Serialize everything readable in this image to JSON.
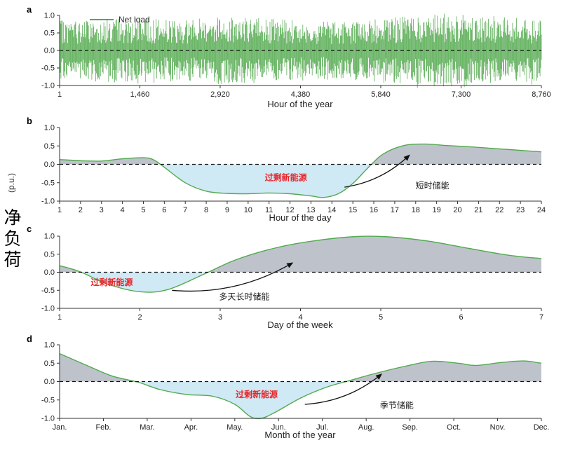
{
  "page": {
    "ylabel_pu": "(p.u.)",
    "ylabel_cn": "净负荷"
  },
  "colors": {
    "line": "#52a94e",
    "above_fill": "#bec3cb",
    "below_fill": "#cfe9f5",
    "zero_line": "#111111",
    "surplus_text": "#e8262a",
    "annotation_text": "#1a1a1a"
  },
  "chart_data": [
    {
      "id": "a",
      "type": "line",
      "panel_label": "a",
      "legend": "Net load",
      "xlabel": "Hour of the year",
      "x_range": [
        1,
        8760
      ],
      "y_range": [
        -1,
        1
      ],
      "yticks": [
        "1.0",
        "0.5",
        "0.0",
        "-0.5",
        "-1.0"
      ],
      "xticks": [
        {
          "label": "1",
          "value": 1
        },
        {
          "label": "1,460",
          "value": 1460
        },
        {
          "label": "2,920",
          "value": 2920
        },
        {
          "label": "4,380",
          "value": 4380
        },
        {
          "label": "5,840",
          "value": 5840
        },
        {
          "label": "7,300",
          "value": 7300
        },
        {
          "label": "8,760",
          "value": 8760
        }
      ],
      "series_description": "Hourly net load fluctuating rapidly around zero between roughly -1.0 and 1.0 p.u. across all 8,760 hours, with slightly larger amplitude around hours 5,840-7,300",
      "amplitude_envelope": [
        0.85,
        0.9,
        0.95,
        0.88,
        1.0,
        0.92,
        0.86,
        0.82,
        0.92,
        1.0,
        1.08,
        0.96,
        0.86
      ],
      "zero_line": true
    },
    {
      "id": "b",
      "type": "area",
      "panel_label": "b",
      "xlabel": "Hour of the day",
      "x_range": [
        1,
        24
      ],
      "y_range": [
        -1,
        1
      ],
      "yticks": [
        "1.0",
        "0.5",
        "0.0",
        "-0.5",
        "-1.0"
      ],
      "xticks": [
        {
          "label": "1",
          "value": 1
        },
        {
          "label": "2",
          "value": 2
        },
        {
          "label": "3",
          "value": 3
        },
        {
          "label": "4",
          "value": 4
        },
        {
          "label": "5",
          "value": 5
        },
        {
          "label": "6",
          "value": 6
        },
        {
          "label": "7",
          "value": 7
        },
        {
          "label": "8",
          "value": 8
        },
        {
          "label": "9",
          "value": 9
        },
        {
          "label": "10",
          "value": 10
        },
        {
          "label": "11",
          "value": 11
        },
        {
          "label": "12",
          "value": 12
        },
        {
          "label": "13",
          "value": 13
        },
        {
          "label": "14",
          "value": 14
        },
        {
          "label": "15",
          "value": 15
        },
        {
          "label": "16",
          "value": 16
        },
        {
          "label": "17",
          "value": 17
        },
        {
          "label": "18",
          "value": 18
        },
        {
          "label": "19",
          "value": 19
        },
        {
          "label": "20",
          "value": 20
        },
        {
          "label": "21",
          "value": 21
        },
        {
          "label": "22",
          "value": 22
        },
        {
          "label": "23",
          "value": 23
        },
        {
          "label": "24",
          "value": 24
        }
      ],
      "points": [
        [
          1,
          0.13
        ],
        [
          2,
          0.1
        ],
        [
          3,
          0.09
        ],
        [
          4,
          0.15
        ],
        [
          5,
          0.18
        ],
        [
          5.5,
          0.12
        ],
        [
          6,
          -0.08
        ],
        [
          7,
          -0.5
        ],
        [
          8,
          -0.73
        ],
        [
          9,
          -0.79
        ],
        [
          10,
          -0.8
        ],
        [
          11,
          -0.78
        ],
        [
          12,
          -0.8
        ],
        [
          13,
          -0.86
        ],
        [
          13.6,
          -0.9
        ],
        [
          14.3,
          -0.8
        ],
        [
          15,
          -0.52
        ],
        [
          15.8,
          -0.05
        ],
        [
          16.5,
          0.3
        ],
        [
          17.5,
          0.52
        ],
        [
          18.5,
          0.55
        ],
        [
          19.5,
          0.51
        ],
        [
          20.5,
          0.48
        ],
        [
          21.5,
          0.44
        ],
        [
          22.5,
          0.4
        ],
        [
          24,
          0.34
        ]
      ],
      "zero_line": true,
      "annotations": {
        "surplus": {
          "text": "过剩新能源",
          "x": 11.8,
          "y": -0.44,
          "color": "#e8262a"
        },
        "storage": {
          "text": "短时储能",
          "x": 18.8,
          "y": -0.66,
          "color": "#1a1a1a"
        },
        "arrow": {
          "from": [
            14.6,
            -0.62
          ],
          "to": [
            17.7,
            0.25
          ]
        }
      }
    },
    {
      "id": "c",
      "type": "area",
      "panel_label": "c",
      "xlabel": "Day of the week",
      "x_range": [
        1,
        7
      ],
      "y_range": [
        -1,
        1
      ],
      "yticks": [
        "1.0",
        "0.5",
        "0.0",
        "-0.5",
        "-1.0"
      ],
      "xticks": [
        {
          "label": "1",
          "value": 1
        },
        {
          "label": "2",
          "value": 2
        },
        {
          "label": "3",
          "value": 3
        },
        {
          "label": "4",
          "value": 4
        },
        {
          "label": "5",
          "value": 5
        },
        {
          "label": "6",
          "value": 6
        },
        {
          "label": "7",
          "value": 7
        }
      ],
      "points": [
        [
          1,
          0.18
        ],
        [
          1.25,
          0.02
        ],
        [
          1.6,
          -0.33
        ],
        [
          2,
          -0.54
        ],
        [
          2.35,
          -0.48
        ],
        [
          2.8,
          -0.05
        ],
        [
          3.2,
          0.35
        ],
        [
          3.7,
          0.68
        ],
        [
          4.2,
          0.88
        ],
        [
          4.7,
          0.99
        ],
        [
          5.1,
          0.98
        ],
        [
          5.6,
          0.86
        ],
        [
          6.1,
          0.66
        ],
        [
          6.6,
          0.47
        ],
        [
          7,
          0.38
        ]
      ],
      "zero_line": true,
      "annotations": {
        "surplus": {
          "text": "过剩新能源",
          "x": 1.65,
          "y": -0.36,
          "color": "#e8262a"
        },
        "storage": {
          "text": "多天长时储能",
          "x": 3.3,
          "y": -0.76,
          "color": "#1a1a1a"
        },
        "arrow": {
          "from": [
            2.4,
            -0.5
          ],
          "to": [
            3.9,
            0.26
          ]
        }
      }
    },
    {
      "id": "d",
      "type": "area",
      "panel_label": "d",
      "xlabel": "Month of the year",
      "x_range": [
        0,
        11
      ],
      "y_range": [
        -1,
        1
      ],
      "yticks": [
        "1.0",
        "0.5",
        "0.0",
        "-0.5",
        "-1.0"
      ],
      "xticks": [
        {
          "label": "Jan.",
          "value": 0
        },
        {
          "label": "Feb.",
          "value": 1
        },
        {
          "label": "Mar.",
          "value": 2
        },
        {
          "label": "Apr.",
          "value": 3
        },
        {
          "label": "May.",
          "value": 4
        },
        {
          "label": "Jun.",
          "value": 5
        },
        {
          "label": "Jul.",
          "value": 6
        },
        {
          "label": "Aug.",
          "value": 7
        },
        {
          "label": "Sep.",
          "value": 8
        },
        {
          "label": "Oct.",
          "value": 9
        },
        {
          "label": "Nov.",
          "value": 10
        },
        {
          "label": "Dec.",
          "value": 11
        }
      ],
      "points": [
        [
          0,
          0.76
        ],
        [
          0.6,
          0.45
        ],
        [
          1.2,
          0.15
        ],
        [
          1.8,
          -0.02
        ],
        [
          2.3,
          -0.22
        ],
        [
          2.9,
          -0.35
        ],
        [
          3.5,
          -0.4
        ],
        [
          4,
          -0.62
        ],
        [
          4.35,
          -0.95
        ],
        [
          4.6,
          -1.0
        ],
        [
          4.9,
          -0.85
        ],
        [
          5.5,
          -0.45
        ],
        [
          6.1,
          -0.15
        ],
        [
          6.6,
          0.02
        ],
        [
          7.2,
          0.22
        ],
        [
          7.9,
          0.42
        ],
        [
          8.5,
          0.55
        ],
        [
          9.1,
          0.5
        ],
        [
          9.5,
          0.44
        ],
        [
          10.1,
          0.52
        ],
        [
          10.6,
          0.56
        ],
        [
          11,
          0.5
        ]
      ],
      "zero_line": true,
      "annotations": {
        "surplus": {
          "text": "过剩新能源",
          "x": 4.5,
          "y": -0.43,
          "color": "#e8262a"
        },
        "storage": {
          "text": "季节储能",
          "x": 7.7,
          "y": -0.72,
          "color": "#1a1a1a"
        },
        "arrow": {
          "from": [
            5.6,
            -0.62
          ],
          "to": [
            7.35,
            0.2
          ]
        }
      }
    }
  ]
}
